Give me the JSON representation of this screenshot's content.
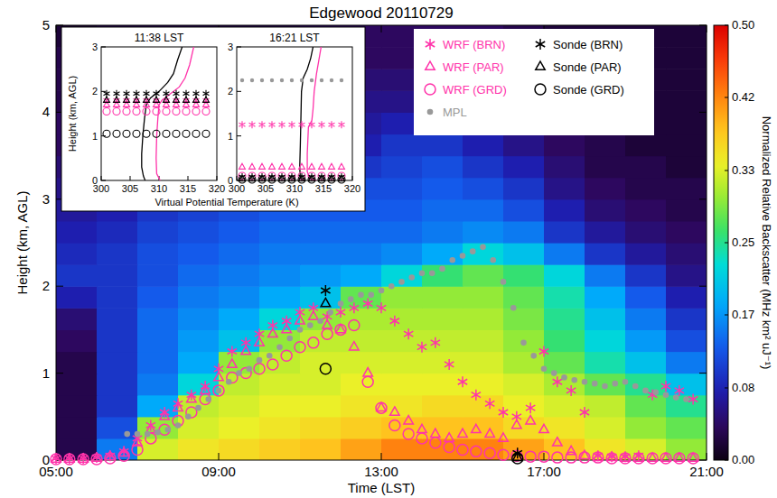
{
  "chart_data": {
    "type": "heatmap",
    "title": "Edgewood 20110729",
    "x_label": "Time (LST)",
    "y_label": "Height (km, AGL)",
    "xlim": [
      5,
      21
    ],
    "xticks": [
      {
        "value": 5,
        "label": "05:00"
      },
      {
        "value": 9,
        "label": "09:00"
      },
      {
        "value": 13,
        "label": "13:00"
      },
      {
        "value": 17,
        "label": "17:00"
      },
      {
        "value": 21,
        "label": "21:00"
      }
    ],
    "ylim": [
      0,
      5
    ],
    "yticks": [
      0,
      1,
      2,
      3,
      4,
      5
    ],
    "legend": "top-right",
    "heatmap": {
      "x_edges": [
        5,
        6,
        7,
        8,
        9,
        10,
        11,
        12,
        13,
        14,
        15,
        16,
        17,
        18,
        19,
        20,
        21
      ],
      "y_edges": [
        0,
        0.25,
        0.5,
        0.75,
        1,
        1.25,
        1.5,
        1.75,
        2,
        2.25,
        2.5,
        2.75,
        3,
        3.25,
        3.5,
        3.75,
        4,
        4.25,
        4.5,
        4.75,
        5
      ],
      "z": [
        [
          0.03,
          0.15,
          0.33,
          0.35,
          0.36,
          0.37,
          0.38,
          0.4,
          0.42,
          0.42,
          0.42,
          0.4,
          0.38,
          0.35,
          0.33,
          0.3
        ],
        [
          0.03,
          0.12,
          0.3,
          0.33,
          0.34,
          0.35,
          0.36,
          0.37,
          0.38,
          0.38,
          0.38,
          0.36,
          0.35,
          0.33,
          0.3,
          0.28
        ],
        [
          0.03,
          0.1,
          0.18,
          0.32,
          0.33,
          0.34,
          0.34,
          0.35,
          0.35,
          0.36,
          0.36,
          0.34,
          0.33,
          0.32,
          0.28,
          0.25
        ],
        [
          0.03,
          0.1,
          0.15,
          0.22,
          0.32,
          0.33,
          0.33,
          0.34,
          0.34,
          0.34,
          0.34,
          0.33,
          0.31,
          0.28,
          0.25,
          0.2
        ],
        [
          0.03,
          0.1,
          0.14,
          0.18,
          0.3,
          0.32,
          0.33,
          0.33,
          0.33,
          0.33,
          0.33,
          0.31,
          0.28,
          0.24,
          0.2,
          0.15
        ],
        [
          0.04,
          0.1,
          0.14,
          0.17,
          0.2,
          0.3,
          0.32,
          0.32,
          0.32,
          0.32,
          0.32,
          0.3,
          0.26,
          0.22,
          0.17,
          0.12
        ],
        [
          0.05,
          0.1,
          0.14,
          0.16,
          0.18,
          0.22,
          0.3,
          0.31,
          0.31,
          0.31,
          0.31,
          0.29,
          0.25,
          0.2,
          0.15,
          0.1
        ],
        [
          0.08,
          0.1,
          0.13,
          0.15,
          0.16,
          0.18,
          0.2,
          0.28,
          0.3,
          0.3,
          0.3,
          0.28,
          0.24,
          0.18,
          0.13,
          0.08
        ],
        [
          0.1,
          0.1,
          0.12,
          0.14,
          0.15,
          0.16,
          0.17,
          0.18,
          0.22,
          0.26,
          0.28,
          0.26,
          0.22,
          0.15,
          0.1,
          0.06
        ],
        [
          0.09,
          0.1,
          0.12,
          0.13,
          0.14,
          0.15,
          0.15,
          0.15,
          0.16,
          0.18,
          0.22,
          0.2,
          0.15,
          0.1,
          0.07,
          0.05
        ],
        [
          0.08,
          0.09,
          0.11,
          0.12,
          0.13,
          0.14,
          0.14,
          0.14,
          0.14,
          0.15,
          0.16,
          0.15,
          0.1,
          0.07,
          0.05,
          0.04
        ],
        [
          0.07,
          0.08,
          0.1,
          0.11,
          0.12,
          0.13,
          0.13,
          0.13,
          0.13,
          0.14,
          0.14,
          0.12,
          0.08,
          0.05,
          0.04,
          0.03
        ],
        [
          0.06,
          0.07,
          0.08,
          0.09,
          0.1,
          0.12,
          0.12,
          0.12,
          0.12,
          0.13,
          0.12,
          0.1,
          0.06,
          0.04,
          0.03,
          0.03
        ],
        [
          0.05,
          0.06,
          0.07,
          0.08,
          0.08,
          0.1,
          0.1,
          0.1,
          0.11,
          0.12,
          0.1,
          0.08,
          0.05,
          0.03,
          0.03,
          0.02
        ],
        [
          0.04,
          0.05,
          0.06,
          0.06,
          0.07,
          0.08,
          0.08,
          0.08,
          0.1,
          0.1,
          0.08,
          0.06,
          0.04,
          0.03,
          0.02,
          0.02
        ],
        [
          0.04,
          0.04,
          0.05,
          0.05,
          0.06,
          0.06,
          0.06,
          0.07,
          0.08,
          0.08,
          0.07,
          0.05,
          0.03,
          0.02,
          0.02,
          0.02
        ],
        [
          0.03,
          0.04,
          0.04,
          0.04,
          0.05,
          0.05,
          0.05,
          0.06,
          0.06,
          0.07,
          0.06,
          0.04,
          0.03,
          0.02,
          0.02,
          0.02
        ],
        [
          0.03,
          0.03,
          0.04,
          0.04,
          0.04,
          0.04,
          0.04,
          0.05,
          0.05,
          0.06,
          0.05,
          0.04,
          0.02,
          0.02,
          0.02,
          0.02
        ],
        [
          0.03,
          0.03,
          0.03,
          0.03,
          0.04,
          0.04,
          0.04,
          0.04,
          0.04,
          0.05,
          0.04,
          0.03,
          0.02,
          0.02,
          0.02,
          0.02
        ],
        [
          0.02,
          0.03,
          0.03,
          0.03,
          0.03,
          0.03,
          0.04,
          0.04,
          0.04,
          0.04,
          0.04,
          0.03,
          0.02,
          0.02,
          0.02,
          0.02
        ]
      ]
    },
    "colorbar": {
      "label": "Normalized Relative Backscatter (MHz km² uJ⁻¹)",
      "range": [
        0,
        0.5
      ],
      "ticks": [
        {
          "value": 0,
          "label": "0.00"
        },
        {
          "value": 0.083,
          "label": "0.08"
        },
        {
          "value": 0.167,
          "label": "0.17"
        },
        0.25,
        {
          "value": 0.333,
          "label": "0.33"
        },
        {
          "value": 0.417,
          "label": "0.42"
        },
        {
          "value": 0.5,
          "label": "0.50"
        }
      ]
    },
    "series": [
      {
        "name": "WRF (BRN)",
        "type": "scatter",
        "color": "#ff33aa",
        "marker": "asterisk",
        "x": [
          5,
          5.33,
          5.67,
          6,
          6.33,
          6.67,
          7,
          7.33,
          7.67,
          8,
          8.33,
          8.67,
          9,
          9.33,
          9.67,
          10,
          10.33,
          10.67,
          11,
          11.33,
          11.67,
          12,
          12.33,
          12.67,
          13,
          13.33,
          13.67,
          14,
          14.33,
          14.67,
          15,
          15.33,
          15.67,
          16,
          16.33,
          16.67,
          17,
          17.33,
          17.67,
          18,
          18.33,
          18.67,
          19,
          19.33,
          19.67,
          20,
          20.33,
          20.67
        ],
        "values": [
          0.02,
          0.02,
          0.02,
          0.03,
          0.05,
          0.1,
          0.25,
          0.4,
          0.55,
          0.65,
          0.75,
          0.85,
          1.05,
          1.25,
          1.35,
          1.45,
          1.55,
          1.6,
          1.7,
          1.75,
          1.65,
          1.7,
          1.75,
          1.8,
          1.75,
          1.6,
          1.45,
          1.3,
          1.35,
          1.1,
          0.9,
          0.75,
          0.65,
          0.55,
          0.5,
          0.6,
          1.25,
          0.9,
          0.8,
          0.55,
          0.05,
          0.04,
          0.04,
          0.05,
          0.75,
          0.85,
          0.8,
          0.7
        ]
      },
      {
        "name": "WRF (PAR)",
        "type": "scatter",
        "color": "#ff33aa",
        "marker": "triangle",
        "x": [
          5,
          5.33,
          5.67,
          6,
          6.33,
          6.67,
          7,
          7.33,
          7.67,
          8,
          8.33,
          8.67,
          9,
          9.33,
          9.67,
          10,
          10.33,
          10.67,
          11,
          11.33,
          11.67,
          12,
          12.33,
          12.67,
          13,
          13.33,
          13.67,
          14,
          14.33,
          14.67,
          15,
          15.33,
          15.67,
          16,
          16.33,
          16.67,
          17,
          17.33,
          17.67,
          18,
          18.33,
          18.67,
          19,
          19.33,
          19.67,
          20,
          20.33,
          20.67
        ],
        "values": [
          0.01,
          0.01,
          0.01,
          0.02,
          0.04,
          0.08,
          0.2,
          0.35,
          0.5,
          0.6,
          0.7,
          0.8,
          0.95,
          1.1,
          1.25,
          1.35,
          1.45,
          1.5,
          1.6,
          1.65,
          1.55,
          1.5,
          1.3,
          1.0,
          0.6,
          0.55,
          0.45,
          0.35,
          0.3,
          0.25,
          0.3,
          0.35,
          0.3,
          0.25,
          0.4,
          0.45,
          0.35,
          0.2,
          0.1,
          0.05,
          0.03,
          0.03,
          0.02,
          0.02,
          0.02,
          0.02,
          0.02,
          0.02
        ]
      },
      {
        "name": "WRF (GRD)",
        "type": "scatter",
        "color": "#ff33aa",
        "marker": "circle",
        "x": [
          5,
          5.33,
          5.67,
          6,
          6.33,
          6.67,
          7,
          7.33,
          7.67,
          8,
          8.33,
          8.67,
          9,
          9.33,
          9.67,
          10,
          10.33,
          10.67,
          11,
          11.33,
          11.67,
          12,
          12.33,
          12.67,
          13,
          13.33,
          13.67,
          14,
          14.33,
          14.67,
          15,
          15.33,
          15.67,
          16,
          16.33,
          16.67,
          17,
          17.33,
          17.67,
          18,
          18.33,
          18.67,
          19,
          19.33,
          19.67,
          20,
          20.33,
          20.67
        ],
        "values": [
          0.01,
          0.01,
          0.01,
          0.01,
          0.02,
          0.05,
          0.12,
          0.25,
          0.35,
          0.45,
          0.55,
          0.7,
          0.8,
          0.95,
          1.0,
          1.05,
          1.1,
          1.2,
          1.3,
          1.35,
          1.45,
          1.5,
          1.55,
          0.9,
          0.6,
          0.4,
          0.3,
          0.25,
          0.2,
          0.15,
          0.12,
          0.1,
          0.08,
          0.06,
          0.05,
          0.04,
          0.04,
          0.03,
          0.03,
          0.03,
          0.03,
          0.02,
          0.02,
          0.02,
          0.02,
          0.02,
          0.02,
          0.02
        ]
      },
      {
        "name": "Sonde (BRN)",
        "type": "scatter",
        "color": "#000000",
        "marker": "asterisk",
        "x": [
          11.63,
          16.35
        ],
        "values": [
          1.95,
          0.08
        ]
      },
      {
        "name": "Sonde (PAR)",
        "type": "scatter",
        "color": "#000000",
        "marker": "triangle",
        "x": [
          11.63,
          16.35
        ],
        "values": [
          1.8,
          0.03
        ]
      },
      {
        "name": "Sonde (GRD)",
        "type": "scatter",
        "color": "#000000",
        "marker": "circle",
        "x": [
          11.63,
          16.35
        ],
        "values": [
          1.05,
          0.02
        ]
      },
      {
        "name": "MPL",
        "type": "scatter",
        "color": "#999999",
        "marker": "dot",
        "x": [
          6.75,
          7,
          7.25,
          7.5,
          7.75,
          8,
          8.25,
          8.5,
          8.75,
          9,
          9.25,
          9.5,
          9.75,
          10,
          10.25,
          10.5,
          10.75,
          11,
          11.25,
          11.5,
          11.75,
          12,
          12.25,
          12.5,
          12.75,
          13,
          13.25,
          13.5,
          13.75,
          14,
          14.25,
          14.5,
          14.75,
          15,
          15.25,
          15.5,
          15.75,
          16,
          16.25,
          16.5,
          16.75,
          17,
          17.25,
          17.5,
          17.75,
          18,
          18.25,
          18.5,
          18.75,
          19,
          19.25,
          19.5,
          19.75,
          20,
          20.25,
          20.5
        ],
        "values": [
          0.3,
          0.3,
          0.3,
          0.32,
          0.35,
          0.4,
          0.5,
          0.6,
          0.7,
          0.8,
          0.9,
          1.0,
          1.05,
          1.15,
          1.2,
          1.3,
          1.4,
          1.5,
          1.55,
          1.6,
          1.7,
          1.8,
          1.85,
          1.9,
          1.9,
          1.95,
          2.0,
          2.05,
          2.1,
          2.15,
          2.15,
          2.2,
          2.3,
          2.35,
          2.4,
          2.45,
          2.3,
          2.05,
          1.75,
          1.35,
          1.2,
          1.05,
          1.0,
          0.95,
          0.92,
          0.9,
          0.88,
          0.85,
          0.88,
          0.9,
          0.85,
          0.8,
          0.78,
          0.75,
          0.72,
          0.7
        ]
      }
    ],
    "inset": {
      "x_label": "Virtual Potential Temperature (K)",
      "y_label": "Height (km, AGL)",
      "xlim": [
        300,
        320
      ],
      "xticks": [
        300,
        305,
        310,
        315,
        320
      ],
      "ylim": [
        0,
        3
      ],
      "yticks": [
        0,
        1,
        2,
        3
      ],
      "panels": [
        {
          "title": "11:38 LST",
          "levels": [
            1.8,
            1.7,
            1.55,
            1.95,
            1.8,
            1.05,
            null
          ],
          "profiles": [
            {
              "type": "line",
              "color": "#000000",
              "x": [
                307.6,
                307.3,
                307.0,
                307.0,
                307.2,
                307.5,
                307.8,
                308.5,
                310.0,
                311.5,
                312.5,
                313.2,
                314.0
              ],
              "values": [
                0,
                0.1,
                0.3,
                0.6,
                1.0,
                1.4,
                1.7,
                1.85,
                2.0,
                2.2,
                2.4,
                2.7,
                3.0
              ]
            },
            {
              "type": "line",
              "color": "#ff33aa",
              "x": [
                310.2,
                309.6,
                309.5,
                309.6,
                309.8,
                310.0,
                310.5,
                312.0,
                313.5,
                314.5,
                315.3,
                316.0
              ],
              "values": [
                0,
                0.15,
                0.5,
                1.0,
                1.4,
                1.7,
                1.8,
                1.95,
                2.1,
                2.3,
                2.6,
                3.0
              ]
            }
          ]
        },
        {
          "title": "16:21 LST",
          "levels": [
            1.25,
            0.3,
            0.1,
            0.08,
            0.03,
            0.02,
            2.25
          ],
          "profiles": [
            {
              "type": "line",
              "color": "#000000",
              "x": [
                311.8,
                311.0,
                310.9,
                311.0,
                311.1,
                311.2,
                311.5,
                312.2,
                312.8,
                313.2
              ],
              "values": [
                0,
                0.05,
                0.3,
                0.8,
                1.4,
                2.0,
                2.3,
                2.5,
                2.75,
                3.0
              ]
            },
            {
              "type": "line",
              "color": "#ff33aa",
              "x": [
                313.8,
                312.6,
                312.2,
                312.2,
                312.4,
                313.0,
                313.2,
                313.4,
                313.8,
                314.2,
                314.6
              ],
              "values": [
                0,
                0.05,
                0.2,
                0.6,
                1.2,
                1.35,
                1.6,
                2.0,
                2.4,
                2.7,
                3.0
              ]
            }
          ]
        }
      ]
    }
  }
}
